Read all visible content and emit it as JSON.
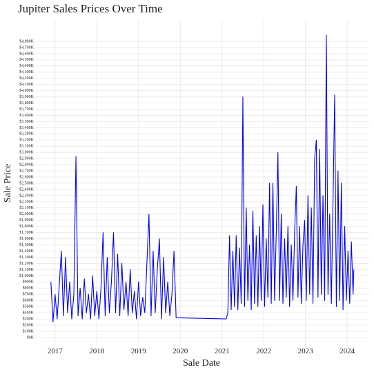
{
  "chart_data": {
    "type": "line",
    "title": "Jupiter Sales Prices Over Time",
    "x_label": "Sale Date",
    "y_label": "Sale Price",
    "color": "#0000ff",
    "grid": true,
    "x": [
      2016.9,
      2016.95,
      2017.0,
      2017.05,
      2017.1,
      2017.15,
      2017.2,
      2017.25,
      2017.3,
      2017.35,
      2017.4,
      2017.45,
      2017.5,
      2017.55,
      2017.6,
      2017.65,
      2017.7,
      2017.75,
      2017.8,
      2017.85,
      2017.9,
      2017.95,
      2018.0,
      2018.05,
      2018.1,
      2018.15,
      2018.2,
      2018.25,
      2018.3,
      2018.35,
      2018.4,
      2018.45,
      2018.5,
      2018.55,
      2018.6,
      2018.65,
      2018.7,
      2018.75,
      2018.8,
      2018.85,
      2018.9,
      2018.95,
      2019.0,
      2019.05,
      2019.1,
      2019.15,
      2019.2,
      2019.25,
      2019.3,
      2019.35,
      2019.4,
      2019.45,
      2019.5,
      2019.55,
      2019.6,
      2019.65,
      2019.7,
      2019.75,
      2019.8,
      2019.85,
      2019.9,
      2021.1,
      2021.14,
      2021.18,
      2021.22,
      2021.26,
      2021.3,
      2021.34,
      2021.38,
      2021.42,
      2021.46,
      2021.5,
      2021.54,
      2021.58,
      2021.62,
      2021.66,
      2021.7,
      2021.74,
      2021.78,
      2021.82,
      2021.86,
      2021.9,
      2021.94,
      2021.98,
      2022.02,
      2022.06,
      2022.1,
      2022.14,
      2022.18,
      2022.22,
      2022.26,
      2022.3,
      2022.34,
      2022.38,
      2022.42,
      2022.46,
      2022.5,
      2022.54,
      2022.58,
      2022.62,
      2022.66,
      2022.7,
      2022.74,
      2022.78,
      2022.82,
      2022.86,
      2022.9,
      2022.94,
      2022.98,
      2023.02,
      2023.06,
      2023.1,
      2023.14,
      2023.18,
      2023.22,
      2023.26,
      2023.3,
      2023.34,
      2023.38,
      2023.42,
      2023.46,
      2023.5,
      2023.54,
      2023.58,
      2023.62,
      2023.66,
      2023.7,
      2023.74,
      2023.78,
      2023.82,
      2023.86,
      2023.9,
      2023.94,
      2023.98,
      2024.02,
      2024.06,
      2024.1,
      2024.14,
      2024.16
    ],
    "values": [
      900000,
      250000,
      700000,
      300000,
      850000,
      1400000,
      350000,
      1300000,
      400000,
      900000,
      300000,
      700000,
      2930000,
      350000,
      800000,
      300000,
      950000,
      400000,
      700000,
      300000,
      1000000,
      350000,
      750000,
      300000,
      800000,
      1700000,
      350000,
      1300000,
      400000,
      900000,
      1700000,
      400000,
      1350000,
      350000,
      1200000,
      450000,
      900000,
      350000,
      1100000,
      400000,
      750000,
      300000,
      900000,
      350000,
      650000,
      400000,
      1200000,
      2000000,
      350000,
      1400000,
      400000,
      1100000,
      1600000,
      300000,
      1300000,
      400000,
      900000,
      350000,
      700000,
      1400000,
      320000,
      300000,
      400000,
      1650000,
      450000,
      1400000,
      500000,
      1650000,
      450000,
      1450000,
      550000,
      3900000,
      500000,
      2100000,
      600000,
      1500000,
      450000,
      2050000,
      550000,
      1650000,
      500000,
      1800000,
      600000,
      2150000,
      500000,
      1600000,
      650000,
      2500000,
      550000,
      2500000,
      600000,
      1700000,
      3000000,
      600000,
      2000000,
      550000,
      1600000,
      650000,
      1800000,
      500000,
      1500000,
      600000,
      1700000,
      2450000,
      650000,
      1800000,
      550000,
      1500000,
      1900000,
      600000,
      2300000,
      700000,
      2100000,
      550000,
      2900000,
      3200000,
      650000,
      3050000,
      700000,
      2300000,
      600000,
      4900000,
      700000,
      2000000,
      550000,
      2200000,
      3930000,
      500000,
      2700000,
      600000,
      2500000,
      450000,
      1800000,
      600000,
      1400000,
      550000,
      1550000,
      700000,
      1100000
    ],
    "xlim": [
      2016.54,
      2024.51
    ],
    "xticks": [
      2017,
      2018,
      2019,
      2020,
      2021,
      2022,
      2023,
      2024
    ],
    "ylim": [
      -140000,
      5140000
    ],
    "yticks": [
      {
        "value": 0,
        "label": "$0K"
      },
      {
        "value": 100000,
        "label": "$100K"
      },
      {
        "value": 200000,
        "label": "$200K"
      },
      {
        "value": 300000,
        "label": "$300K"
      },
      {
        "value": 400000,
        "label": "$400K"
      },
      {
        "value": 500000,
        "label": "$500K"
      },
      {
        "value": 600000,
        "label": "$600K"
      },
      {
        "value": 700000,
        "label": "$700K"
      },
      {
        "value": 800000,
        "label": "$800K"
      },
      {
        "value": 900000,
        "label": "$900K"
      },
      {
        "value": 1000000,
        "label": "$1,000K"
      },
      {
        "value": 1100000,
        "label": "$1,100K"
      },
      {
        "value": 1200000,
        "label": "$1,200K"
      },
      {
        "value": 1300000,
        "label": "$1,300K"
      },
      {
        "value": 1400000,
        "label": "$1,400K"
      },
      {
        "value": 1500000,
        "label": "$1,500K"
      },
      {
        "value": 1600000,
        "label": "$1,600K"
      },
      {
        "value": 1700000,
        "label": "$1,700K"
      },
      {
        "value": 1800000,
        "label": "$1,800K"
      },
      {
        "value": 1900000,
        "label": "$1,900K"
      },
      {
        "value": 2000000,
        "label": "$2,000K"
      },
      {
        "value": 2100000,
        "label": "$2,100K"
      },
      {
        "value": 2200000,
        "label": "$2,200K"
      },
      {
        "value": 2300000,
        "label": "$2,300K"
      },
      {
        "value": 2400000,
        "label": "$2,400K"
      },
      {
        "value": 2500000,
        "label": "$2,500K"
      },
      {
        "value": 2600000,
        "label": "$2,600K"
      },
      {
        "value": 2700000,
        "label": "$2,700K"
      },
      {
        "value": 2800000,
        "label": "$2,800K"
      },
      {
        "value": 2900000,
        "label": "$2,900K"
      },
      {
        "value": 3000000,
        "label": "$3,000K"
      },
      {
        "value": 3100000,
        "label": "$3,100K"
      },
      {
        "value": 3200000,
        "label": "$3,200K"
      },
      {
        "value": 3300000,
        "label": "$3,300K"
      },
      {
        "value": 3400000,
        "label": "$3,400K"
      },
      {
        "value": 3500000,
        "label": "$3,500K"
      },
      {
        "value": 3600000,
        "label": "$3,600K"
      },
      {
        "value": 3700000,
        "label": "$3,700K"
      },
      {
        "value": 3800000,
        "label": "$3,800K"
      },
      {
        "value": 3900000,
        "label": "$3,900K"
      },
      {
        "value": 4000000,
        "label": "$4,000K"
      },
      {
        "value": 4100000,
        "label": "$4,100K"
      },
      {
        "value": 4200000,
        "label": "$4,200K"
      },
      {
        "value": 4300000,
        "label": "$4,300K"
      },
      {
        "value": 4400000,
        "label": "$4,400K"
      },
      {
        "value": 4500000,
        "label": "$4,500K"
      },
      {
        "value": 4600000,
        "label": "$4,600K"
      },
      {
        "value": 4700000,
        "label": "$4,700K"
      },
      {
        "value": 4800000,
        "label": "$4,800K"
      }
    ]
  }
}
